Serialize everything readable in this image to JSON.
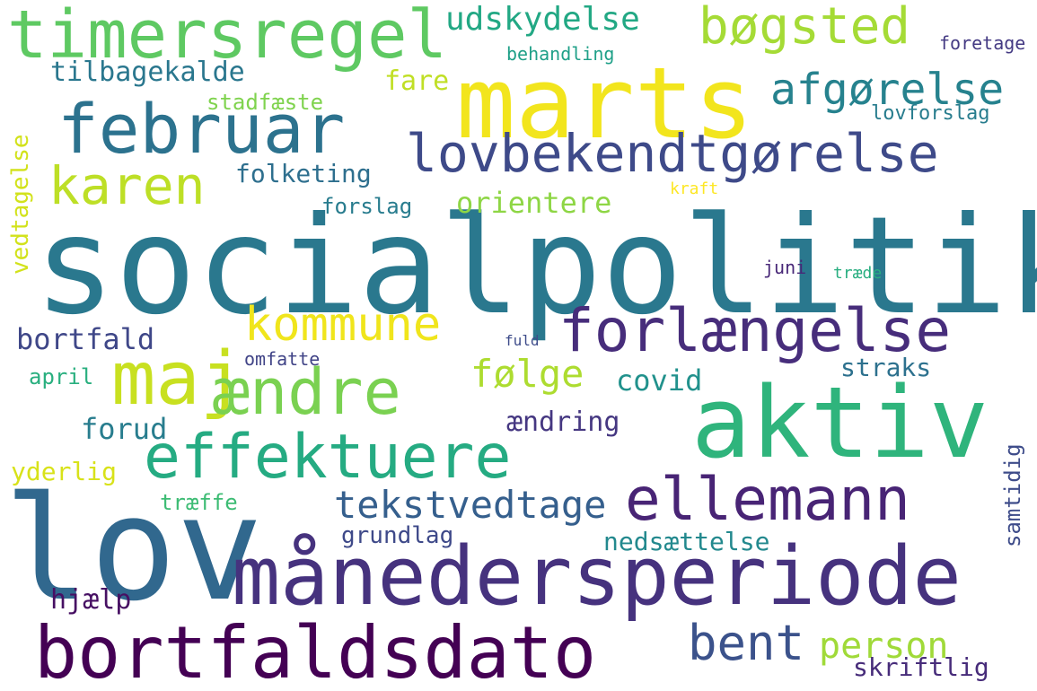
{
  "words": [
    {
      "text": "socialpolitik",
      "color": "#2a788e"
    },
    {
      "text": "lov",
      "color": "#31688e"
    },
    {
      "text": "marts",
      "color": "#f2e51d"
    },
    {
      "text": "aktiv",
      "color": "#2fb47c"
    },
    {
      "text": "månedersperiode",
      "color": "#46327e"
    },
    {
      "text": "bortfaldsdato",
      "color": "#440154"
    },
    {
      "text": "timersregel",
      "color": "#5ec962"
    },
    {
      "text": "februar",
      "color": "#2c728e"
    },
    {
      "text": "lovbekendtgørelse",
      "color": "#3e4a89"
    },
    {
      "text": "forlængelse",
      "color": "#472d7b"
    },
    {
      "text": "maj",
      "color": "#c8e020"
    },
    {
      "text": "ændre",
      "color": "#7ad151"
    },
    {
      "text": "effektuere",
      "color": "#25ab82"
    },
    {
      "text": "ellemann",
      "color": "#482475"
    },
    {
      "text": "bøgsted",
      "color": "#a5db36"
    },
    {
      "text": "afgørelse",
      "color": "#26828e"
    },
    {
      "text": "karen",
      "color": "#bddf26"
    },
    {
      "text": "udskydelse",
      "color": "#22a884"
    },
    {
      "text": "kommune",
      "color": "#f0e51c"
    },
    {
      "text": "følge",
      "color": "#addc30"
    },
    {
      "text": "bent",
      "color": "#3b528b"
    },
    {
      "text": "tekstvedtage",
      "color": "#355f8d"
    },
    {
      "text": "person",
      "color": "#a0da39"
    },
    {
      "text": "tilbagekalde",
      "color": "#2a778e"
    },
    {
      "text": "fare",
      "color": "#c0df25"
    },
    {
      "text": "stadfæste",
      "color": "#7fd34e"
    },
    {
      "text": "folketing",
      "color": "#2e6f8e"
    },
    {
      "text": "orientere",
      "color": "#8ed645"
    },
    {
      "text": "forslag",
      "color": "#287c8e"
    },
    {
      "text": "behandling",
      "color": "#1fa088"
    },
    {
      "text": "foretage",
      "color": "#443a83"
    },
    {
      "text": "lovforslag",
      "color": "#287d8e"
    },
    {
      "text": "kraft",
      "color": "#fde725"
    },
    {
      "text": "juni",
      "color": "#482878"
    },
    {
      "text": "træde",
      "color": "#28ae80"
    },
    {
      "text": "bortfald",
      "color": "#3f4788"
    },
    {
      "text": "fuld",
      "color": "#3e4c8a"
    },
    {
      "text": "omfatte",
      "color": "#414487"
    },
    {
      "text": "straks",
      "color": "#2d718e"
    },
    {
      "text": "covid",
      "color": "#21918c"
    },
    {
      "text": "april",
      "color": "#29af7f"
    },
    {
      "text": "forud",
      "color": "#287d8e"
    },
    {
      "text": "ændring",
      "color": "#453781"
    },
    {
      "text": "yderlig",
      "color": "#d8e219"
    },
    {
      "text": "træffe",
      "color": "#3dbc74"
    },
    {
      "text": "grundlag",
      "color": "#3e4989"
    },
    {
      "text": "nedsættelse",
      "color": "#23898e"
    },
    {
      "text": "hjælp",
      "color": "#471063"
    },
    {
      "text": "skriftlig",
      "color": "#472c7a"
    },
    {
      "text": "vedtagelse",
      "color": "#d2e21b"
    },
    {
      "text": "samtidig",
      "color": "#3e4c8a"
    }
  ]
}
